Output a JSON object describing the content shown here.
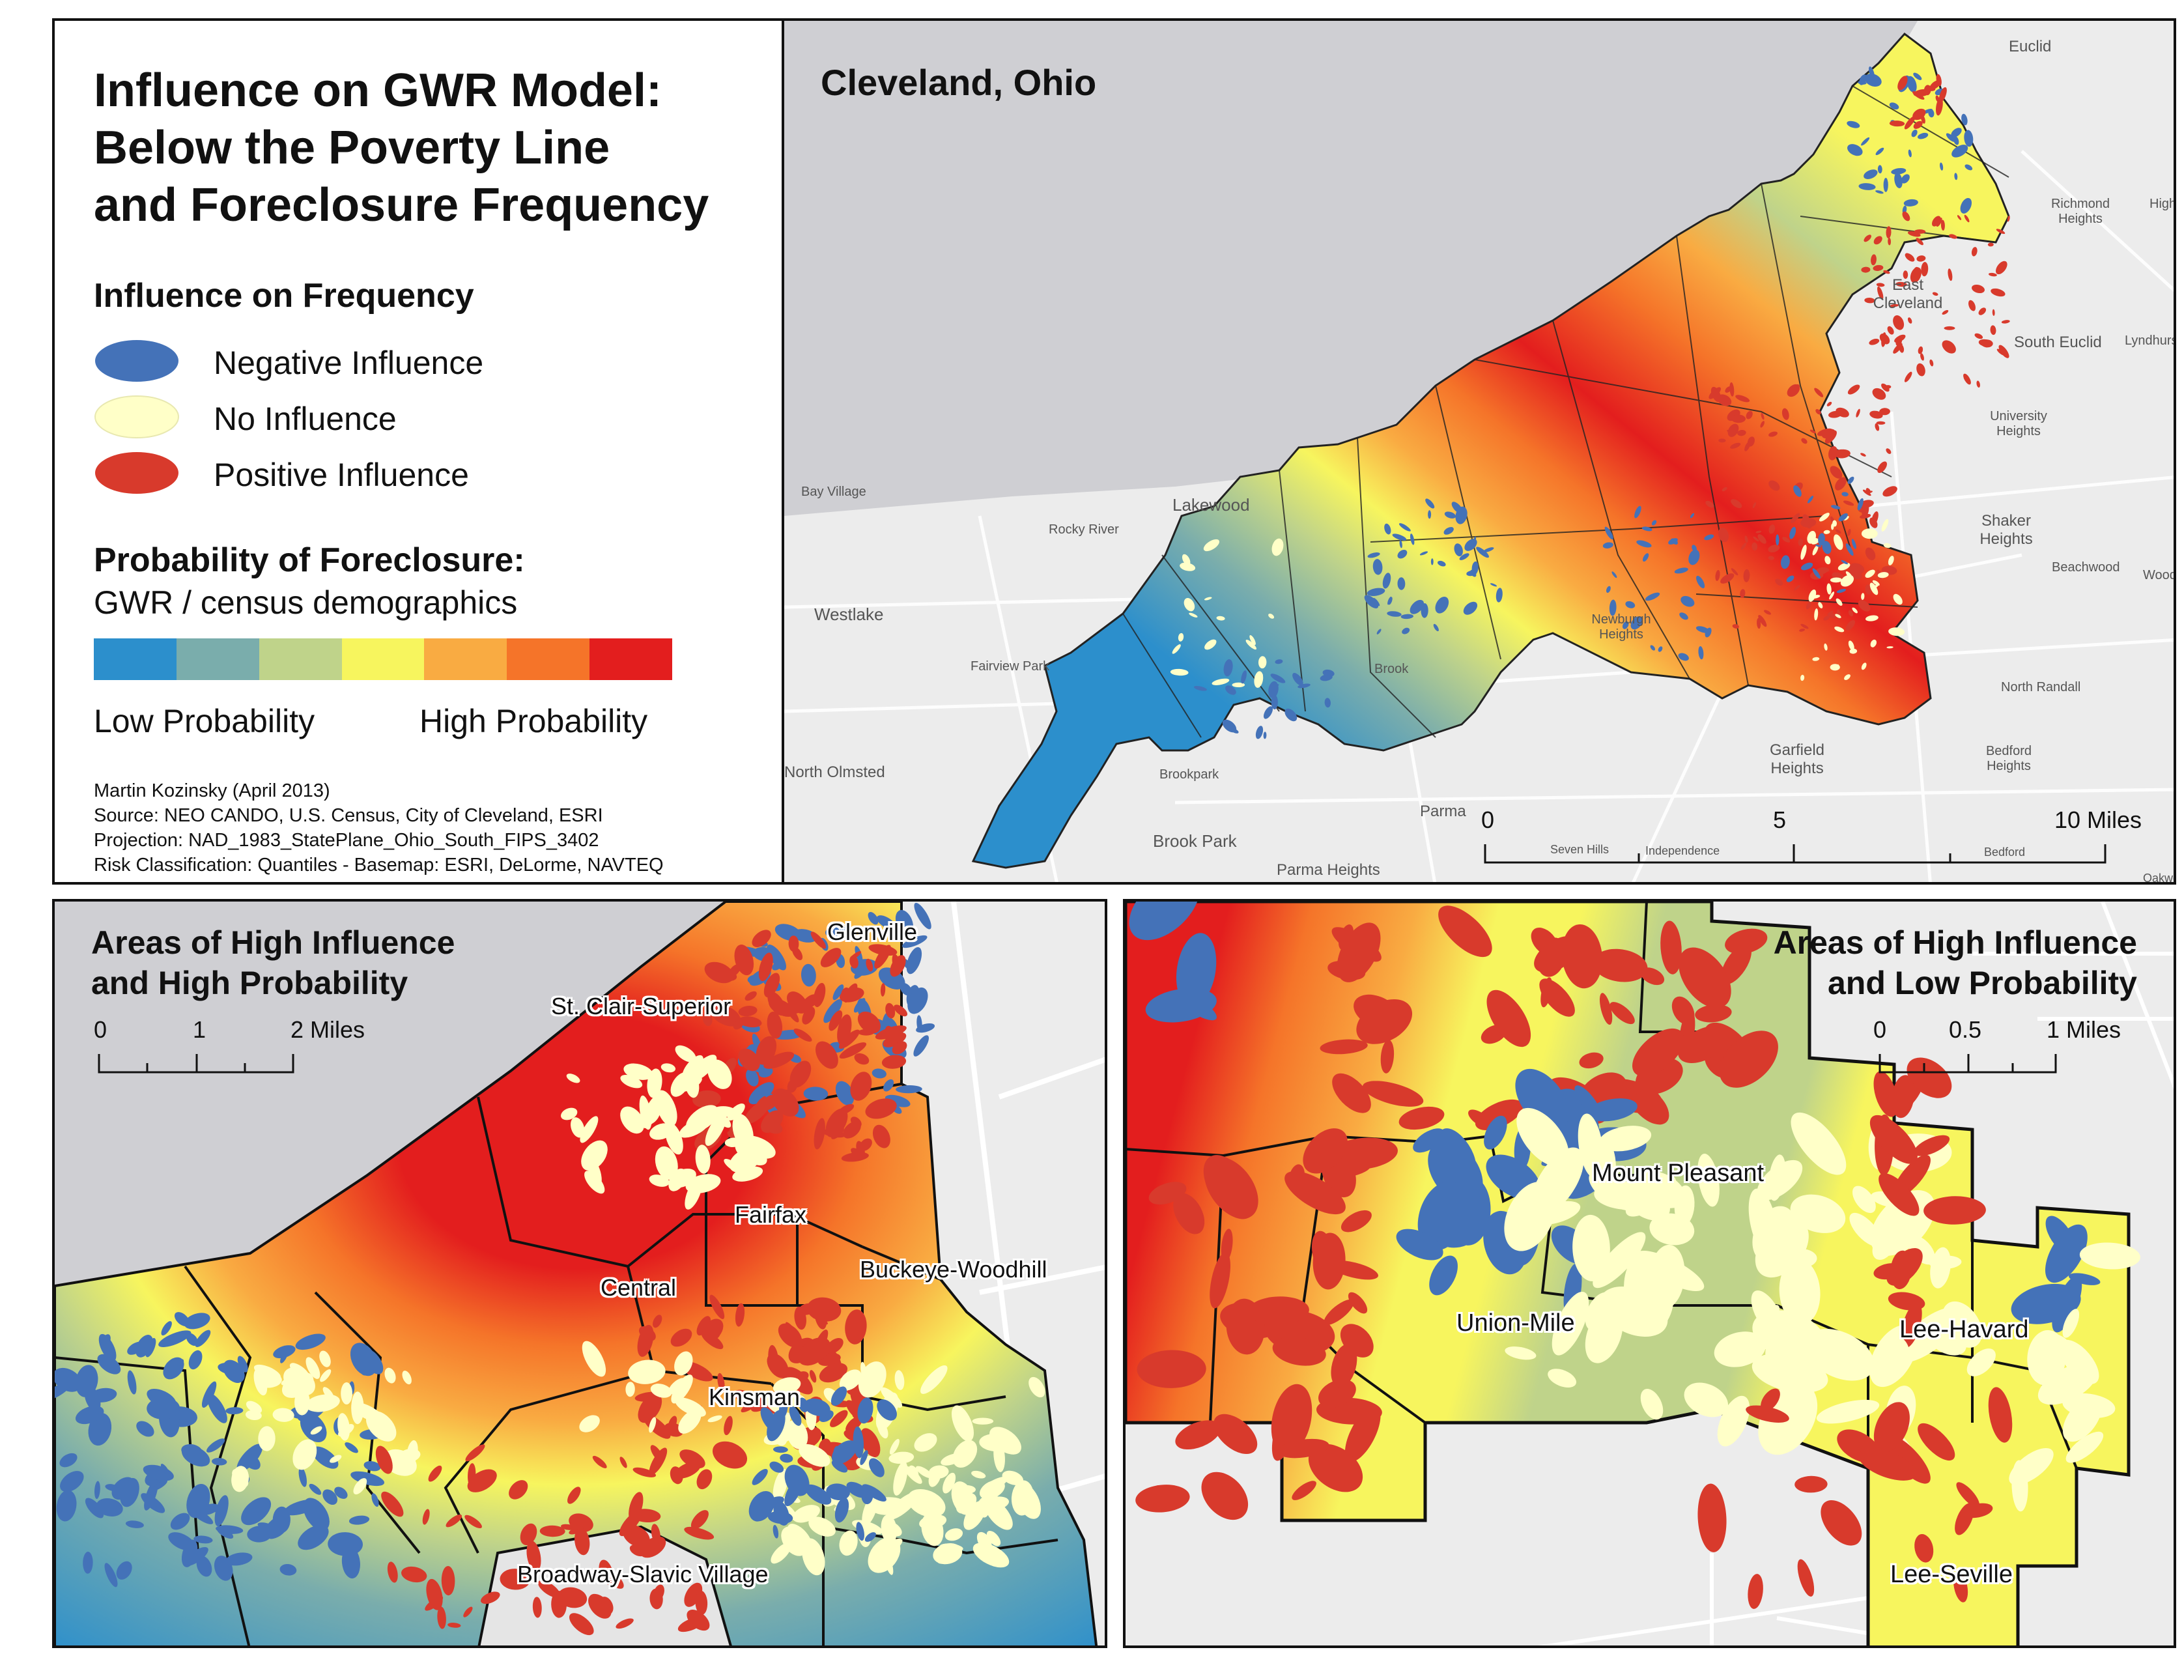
{
  "legend": {
    "title_lines": [
      "Influence on GWR Model:",
      "Below the Poverty Line",
      "and Foreclosure Frequency"
    ],
    "influence_heading": "Influence on Frequency",
    "influence_items": [
      {
        "label": "Negative Influence",
        "color": "#4472b8"
      },
      {
        "label": "No Influence",
        "color": "#ffffc8"
      },
      {
        "label": "Positive Influence",
        "color": "#d83a2c"
      }
    ],
    "probability_heading": "Probability of Foreclosure:",
    "probability_subheading": "GWR / census demographics",
    "ramp_colors": [
      "#2c8fcc",
      "#7aadac",
      "#bfd38a",
      "#f7f55e",
      "#f9ab42",
      "#f57429",
      "#e31e1e"
    ],
    "low_label": "Low Probability",
    "high_label": "High Probability",
    "credits": [
      "Martin Kozinsky (April 2013)",
      "Source: NEO CANDO, U.S. Census, City of Cleveland, ESRI",
      "Projection: NAD_1983_StatePlane_Ohio_South_FIPS_3402",
      "Risk Classification: Quantiles - Basemap: ESRI, DeLorme, NAVTEQ"
    ]
  },
  "main_map": {
    "title": "Cleveland, Ohio",
    "place_labels": [
      "Euclid",
      "Richmond Heights",
      "High",
      "East Cleveland",
      "South Euclid",
      "Lyndhurs",
      "University Heights",
      "Bay Village",
      "Lakewood",
      "Rocky River",
      "Shaker Heights",
      "Beachwood",
      "Wood",
      "Westlake",
      "Newburgh Heights",
      "Fairview Park",
      "Brook",
      "North Randall",
      "North Olmsted",
      "Brookpark",
      "Garfield Heights",
      "Bedford Heights",
      "Parma",
      "Brook Park",
      "Parma Heights",
      "Seven Hills",
      "Independence",
      "Bedford",
      "Oakwoo"
    ],
    "scale": {
      "ticks": [
        "0",
        "5",
        "10 Miles"
      ]
    }
  },
  "inset_left": {
    "title_lines": [
      "Areas of High Influence",
      "and High Probability"
    ],
    "scale": {
      "ticks": [
        "0",
        "1",
        "2 Miles"
      ]
    },
    "neighborhoods": [
      "Glenville",
      "St. Clair-Superior",
      "Fairfax",
      "Buckeye-Woodhill",
      "Central",
      "Kinsman",
      "Broadway-Slavic Village"
    ]
  },
  "inset_right": {
    "title_lines": [
      "Areas of High Influence",
      "and Low Probability"
    ],
    "scale": {
      "ticks": [
        "0",
        "0.5",
        "1 Miles"
      ]
    },
    "neighborhoods": [
      "Mount Pleasant",
      "Union-Mile",
      "Lee-Havard",
      "Lee-Seville"
    ]
  }
}
